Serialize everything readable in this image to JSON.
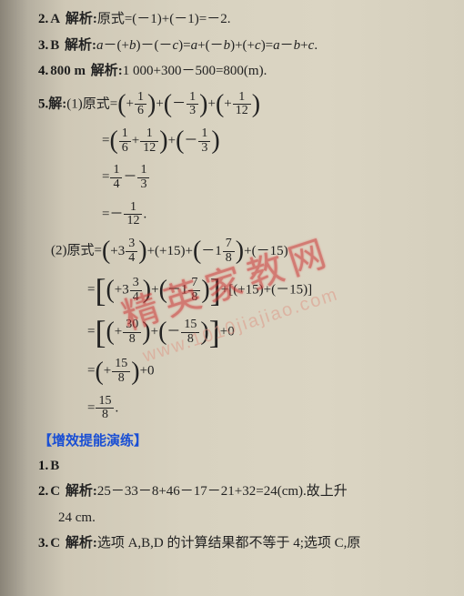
{
  "page": {
    "background_gradient": [
      "#8a8478",
      "#b5afa0",
      "#cfc8b6",
      "#d8d2c0",
      "#dbd5c3",
      "#d5cfbd"
    ],
    "font_family": "SimSun / STSong",
    "font_size_pt": 11
  },
  "q2": {
    "num": "2.",
    "ans": "A",
    "label": "解析:",
    "expr": "原式=(－1)+(－1)=－2."
  },
  "q3": {
    "num": "3.",
    "ans": "B",
    "label": "解析:",
    "expr_html": "<span class='math'>a</span>－(+<span class='math'>b</span>)－(－<span class='math'>c</span>)=<span class='math'>a</span>+(－<span class='math'>b</span>)+(+<span class='math'>c</span>)=<span class='math'>a</span>－<span class='math'>b</span>+<span class='math'>c</span>."
  },
  "q4": {
    "num": "4.",
    "ans": "800 m",
    "label": "解析:",
    "expr": "1 000+300－500=800(m)."
  },
  "q5": {
    "num": "5.",
    "label": "解:",
    "p1_lead": "(1)原式=",
    "p1_l1": "<span class='medL'>(</span>+<span class='frac'><span class='n'>1</span><span class='d'>6</span></span><span class='medR'>)</span>+<span class='medL'>(</span>－<span class='frac'><span class='n'>1</span><span class='d'>3</span></span><span class='medR'>)</span>+<span class='medL'>(</span>+<span class='frac'><span class='n'>1</span><span class='d'>12</span></span><span class='medR'>)</span>",
    "p1_l2": "=<span class='medL'>(</span><span class='frac'><span class='n'>1</span><span class='d'>6</span></span>+<span class='frac'><span class='n'>1</span><span class='d'>12</span></span><span class='medR'>)</span>+<span class='medL'>(</span>－<span class='frac'><span class='n'>1</span><span class='d'>3</span></span><span class='medR'>)</span>",
    "p1_l3": "=<span class='frac'><span class='n'>1</span><span class='d'>4</span></span>－<span class='frac'><span class='n'>1</span><span class='d'>3</span></span>",
    "p1_l4": "=－<span class='frac'><span class='n'>1</span><span class='d'>12</span></span>.",
    "p2_lead": "(2)原式=",
    "p2_l1": "<span class='medL'>(</span>+3<span class='frac'><span class='n'>3</span><span class='d'>4</span></span><span class='medR'>)</span>+(+15)+<span class='medL'>(</span>－1<span class='frac'><span class='n'>7</span><span class='d'>8</span></span><span class='medR'>)</span>+(－15)",
    "p2_l2": "=<span class='bkL'>[</span><span class='medL'>(</span>+3<span class='frac'><span class='n'>3</span><span class='d'>4</span></span><span class='medR'>)</span>+<span class='medL'>(</span>－1<span class='frac'><span class='n'>7</span><span class='d'>8</span></span><span class='medR'>)</span><span class='bkR'>]</span>+[(+15)+(－15)]",
    "p2_l3": "=<span class='bkL'>[</span><span class='medL'>(</span>+<span class='frac'><span class='n'>30</span><span class='d'>8</span></span><span class='medR'>)</span>+<span class='medL'>(</span>－<span class='frac'><span class='n'>15</span><span class='d'>8</span></span><span class='medR'>)</span><span class='bkR'>]</span>+0",
    "p2_l4": "=<span class='medL'>(</span>+<span class='frac'><span class='n'>15</span><span class='d'>8</span></span><span class='medR'>)</span>+0",
    "p2_l5": "=<span class='frac'><span class='n'>15</span><span class='d'>8</span></span>."
  },
  "section": {
    "text": "【增效提能演练】",
    "color": "#1a4fd4"
  },
  "e1": {
    "num": "1.",
    "ans": "B"
  },
  "e2": {
    "num": "2.",
    "ans": "C",
    "label": "解析:",
    "expr": "25－33－8+46－17－21+32=24(cm).故上升",
    "cont": "24 cm."
  },
  "e3": {
    "num": "3.",
    "ans": "C",
    "label": "解析:",
    "expr": "选项 A,B,D 的计算结果都不等于 4;选项 C,原"
  },
  "watermark": {
    "line1_pre": "精英",
    "line1_post": "家教网",
    "line2": "www.1010jiajiao.com",
    "color": "#d66",
    "url_color": "#d98"
  }
}
